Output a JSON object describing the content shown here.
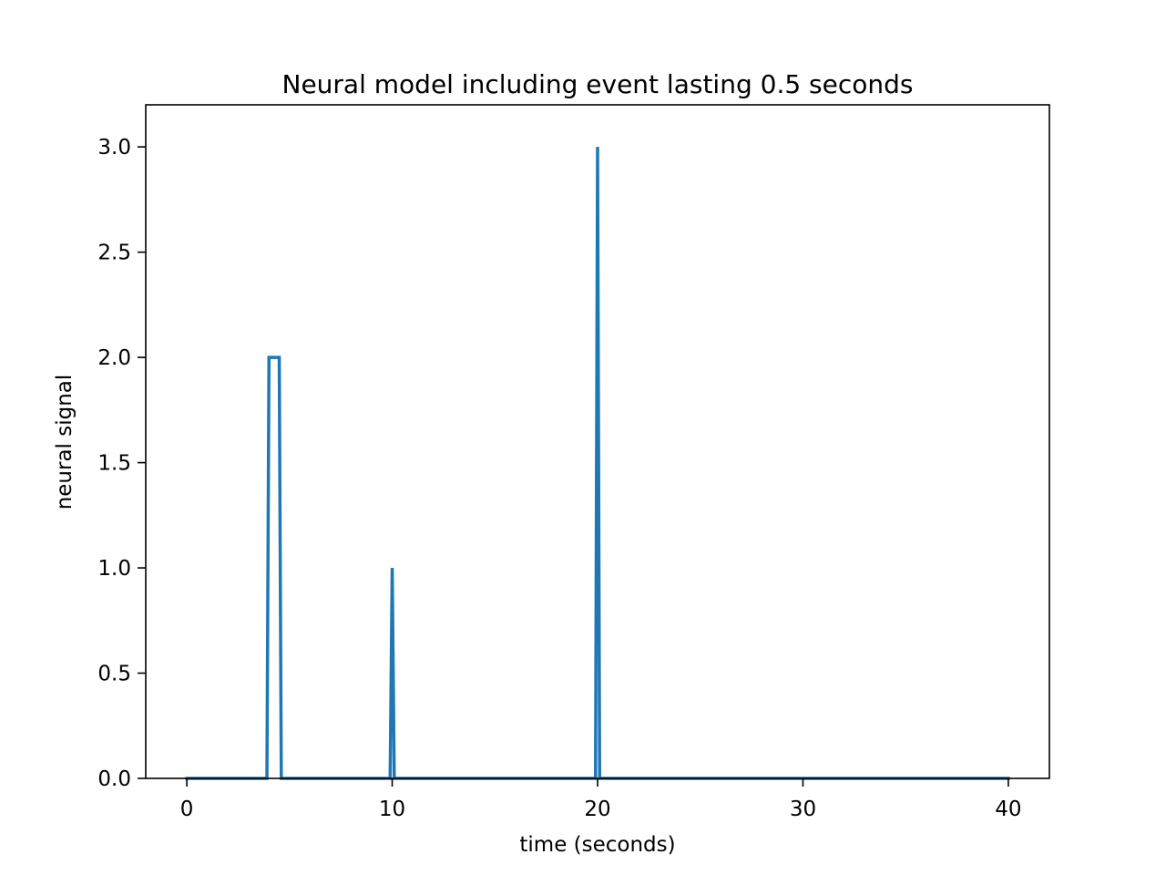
{
  "chart_data": {
    "type": "line",
    "title": "Neural model including event lasting 0.5 seconds",
    "xlabel": "time (seconds)",
    "ylabel": "neural signal",
    "xlim": [
      -2,
      42
    ],
    "ylim": [
      0,
      3.2
    ],
    "xticks": [
      0,
      10,
      20,
      30,
      40
    ],
    "xtick_labels": [
      "0",
      "10",
      "20",
      "30",
      "40"
    ],
    "yticks": [
      0.0,
      0.5,
      1.0,
      1.5,
      2.0,
      2.5,
      3.0
    ],
    "ytick_labels": [
      "0.0",
      "0.5",
      "1.0",
      "1.5",
      "2.0",
      "2.5",
      "3.0"
    ],
    "grid": false,
    "line_color": "#1f77b4",
    "series": [
      {
        "x": [
          0,
          3.9,
          4.0,
          4.5,
          4.6,
          9.9,
          10.0,
          10.1,
          19.9,
          20.0,
          20.1,
          40
        ],
        "y": [
          0,
          0,
          2,
          2,
          0,
          0,
          1,
          0,
          0,
          3,
          0,
          0
        ]
      }
    ]
  }
}
